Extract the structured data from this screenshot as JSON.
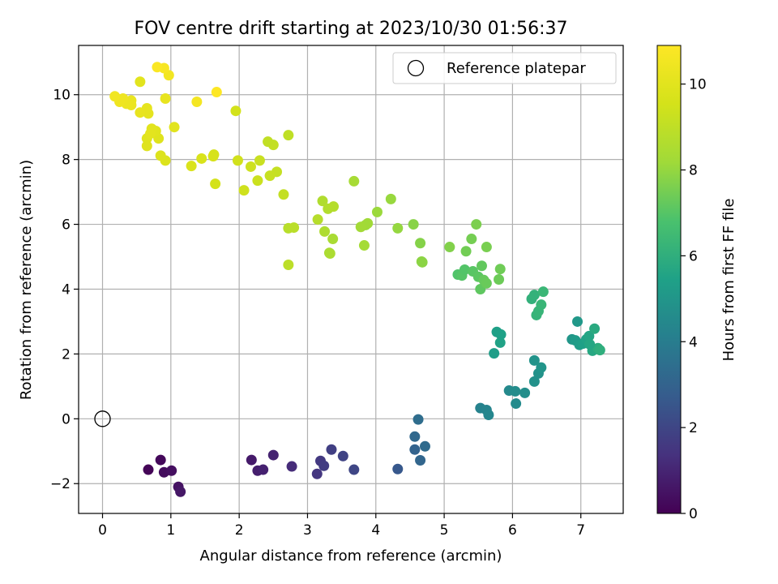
{
  "chart_data": {
    "type": "scatter",
    "title": "FOV centre drift starting at 2023/10/30 01:56:37",
    "xlabel": "Angular distance from reference (arcmin)",
    "ylabel": "Rotation from reference (arcmin)",
    "xlim": [
      -0.35,
      7.62
    ],
    "ylim": [
      -2.92,
      11.52
    ],
    "xticks": [
      0,
      1,
      2,
      3,
      4,
      5,
      6,
      7
    ],
    "xtick_labels": [
      "0",
      "1",
      "2",
      "3",
      "4",
      "5",
      "6",
      "7"
    ],
    "yticks": [
      -2,
      0,
      2,
      4,
      6,
      8,
      10
    ],
    "ytick_labels": [
      "−2",
      "0",
      "2",
      "4",
      "6",
      "8",
      "10"
    ],
    "grid": true,
    "legend": {
      "position": "top-right",
      "entries": [
        {
          "label": "Reference platepar",
          "marker": "open-circle"
        }
      ]
    },
    "reference_point": {
      "x": 0,
      "y": 0,
      "label": "Reference platepar"
    },
    "colorbar": {
      "label": "Hours from first FF file",
      "colormap": "viridis",
      "range": [
        0,
        10.9
      ],
      "ticks": [
        0,
        2,
        4,
        6,
        8,
        10
      ],
      "tick_labels": [
        "0",
        "2",
        "4",
        "6",
        "8",
        "10"
      ]
    },
    "points": [
      {
        "x": 0.67,
        "y": -1.57,
        "c": 0.1
      },
      {
        "x": 0.85,
        "y": -1.27,
        "c": 0.2
      },
      {
        "x": 0.9,
        "y": -1.65,
        "c": 0.3
      },
      {
        "x": 1.01,
        "y": -1.6,
        "c": 0.4
      },
      {
        "x": 1.11,
        "y": -2.1,
        "c": 0.5
      },
      {
        "x": 1.14,
        "y": -2.25,
        "c": 0.6
      },
      {
        "x": 2.18,
        "y": -1.27,
        "c": 0.7
      },
      {
        "x": 2.27,
        "y": -1.6,
        "c": 0.8
      },
      {
        "x": 2.35,
        "y": -1.57,
        "c": 0.9
      },
      {
        "x": 2.5,
        "y": -1.12,
        "c": 0.95
      },
      {
        "x": 2.77,
        "y": -1.47,
        "c": 1.2
      },
      {
        "x": 3.14,
        "y": -1.7,
        "c": 1.5
      },
      {
        "x": 3.19,
        "y": -1.3,
        "c": 1.6
      },
      {
        "x": 3.24,
        "y": -1.45,
        "c": 1.7
      },
      {
        "x": 3.35,
        "y": -0.95,
        "c": 1.8
      },
      {
        "x": 3.52,
        "y": -1.15,
        "c": 1.9
      },
      {
        "x": 3.68,
        "y": -1.57,
        "c": 2.0
      },
      {
        "x": 4.32,
        "y": -1.55,
        "c": 2.6
      },
      {
        "x": 4.57,
        "y": -0.55,
        "c": 3.2
      },
      {
        "x": 4.57,
        "y": -0.95,
        "c": 3.0
      },
      {
        "x": 4.62,
        "y": -0.02,
        "c": 3.4
      },
      {
        "x": 4.65,
        "y": -1.28,
        "c": 3.1
      },
      {
        "x": 4.72,
        "y": -0.85,
        "c": 3.3
      },
      {
        "x": 5.53,
        "y": 0.33,
        "c": 4.2
      },
      {
        "x": 5.62,
        "y": 0.27,
        "c": 4.3
      },
      {
        "x": 5.65,
        "y": 0.12,
        "c": 4.35
      },
      {
        "x": 5.95,
        "y": 0.87,
        "c": 4.5
      },
      {
        "x": 6.04,
        "y": 0.85,
        "c": 4.6
      },
      {
        "x": 6.05,
        "y": 0.47,
        "c": 4.55
      },
      {
        "x": 6.18,
        "y": 0.8,
        "c": 4.7
      },
      {
        "x": 6.32,
        "y": 1.15,
        "c": 4.8
      },
      {
        "x": 6.32,
        "y": 1.8,
        "c": 4.9
      },
      {
        "x": 6.38,
        "y": 1.4,
        "c": 4.85
      },
      {
        "x": 6.42,
        "y": 1.58,
        "c": 4.95
      },
      {
        "x": 5.73,
        "y": 2.02,
        "c": 5.3
      },
      {
        "x": 5.77,
        "y": 2.68,
        "c": 5.4
      },
      {
        "x": 5.82,
        "y": 2.35,
        "c": 5.5
      },
      {
        "x": 5.83,
        "y": 2.6,
        "c": 5.45
      },
      {
        "x": 6.87,
        "y": 2.45,
        "c": 5.0
      },
      {
        "x": 6.92,
        "y": 2.42,
        "c": 5.2
      },
      {
        "x": 6.95,
        "y": 3.0,
        "c": 5.1
      },
      {
        "x": 6.98,
        "y": 2.28,
        "c": 5.3
      },
      {
        "x": 7.03,
        "y": 2.32,
        "c": 5.4
      },
      {
        "x": 7.08,
        "y": 2.45,
        "c": 5.5
      },
      {
        "x": 7.12,
        "y": 2.55,
        "c": 5.6
      },
      {
        "x": 7.17,
        "y": 2.1,
        "c": 5.7
      },
      {
        "x": 7.2,
        "y": 2.78,
        "c": 5.8
      },
      {
        "x": 7.25,
        "y": 2.18,
        "c": 5.9
      },
      {
        "x": 7.28,
        "y": 2.12,
        "c": 6.0
      },
      {
        "x": 7.13,
        "y": 2.3,
        "c": 5.65
      },
      {
        "x": 6.28,
        "y": 3.7,
        "c": 6.1
      },
      {
        "x": 6.32,
        "y": 3.82,
        "c": 6.15
      },
      {
        "x": 6.35,
        "y": 3.2,
        "c": 6.2
      },
      {
        "x": 6.38,
        "y": 3.32,
        "c": 6.25
      },
      {
        "x": 6.42,
        "y": 3.52,
        "c": 6.3
      },
      {
        "x": 6.45,
        "y": 3.92,
        "c": 6.35
      },
      {
        "x": 5.2,
        "y": 4.45,
        "c": 6.9
      },
      {
        "x": 5.26,
        "y": 4.42,
        "c": 7.0
      },
      {
        "x": 5.3,
        "y": 4.6,
        "c": 6.95
      },
      {
        "x": 5.42,
        "y": 4.55,
        "c": 7.05
      },
      {
        "x": 5.5,
        "y": 4.38,
        "c": 7.1
      },
      {
        "x": 5.53,
        "y": 4.0,
        "c": 7.15
      },
      {
        "x": 5.55,
        "y": 4.72,
        "c": 7.2
      },
      {
        "x": 5.58,
        "y": 4.28,
        "c": 7.25
      },
      {
        "x": 5.62,
        "y": 4.18,
        "c": 7.3
      },
      {
        "x": 5.8,
        "y": 4.3,
        "c": 7.35
      },
      {
        "x": 5.82,
        "y": 4.62,
        "c": 7.4
      },
      {
        "x": 5.32,
        "y": 5.17,
        "c": 7.45
      },
      {
        "x": 5.4,
        "y": 5.55,
        "c": 7.5
      },
      {
        "x": 5.47,
        "y": 6.0,
        "c": 7.6
      },
      {
        "x": 5.62,
        "y": 5.3,
        "c": 7.55
      },
      {
        "x": 5.08,
        "y": 5.3,
        "c": 7.7
      },
      {
        "x": 4.55,
        "y": 6.0,
        "c": 7.8
      },
      {
        "x": 4.65,
        "y": 5.42,
        "c": 7.75
      },
      {
        "x": 4.67,
        "y": 4.85,
        "c": 7.9
      },
      {
        "x": 4.68,
        "y": 4.83,
        "c": 7.85
      },
      {
        "x": 4.32,
        "y": 5.88,
        "c": 8.0
      },
      {
        "x": 4.22,
        "y": 6.78,
        "c": 8.05
      },
      {
        "x": 4.02,
        "y": 6.38,
        "c": 8.1
      },
      {
        "x": 3.85,
        "y": 5.98,
        "c": 8.15
      },
      {
        "x": 3.88,
        "y": 6.03,
        "c": 8.2
      },
      {
        "x": 3.78,
        "y": 5.92,
        "c": 8.25
      },
      {
        "x": 3.83,
        "y": 5.35,
        "c": 8.3
      },
      {
        "x": 3.68,
        "y": 7.33,
        "c": 8.35
      },
      {
        "x": 3.37,
        "y": 5.55,
        "c": 8.4
      },
      {
        "x": 3.32,
        "y": 5.12,
        "c": 8.45
      },
      {
        "x": 3.33,
        "y": 5.1,
        "c": 8.5
      },
      {
        "x": 3.25,
        "y": 5.78,
        "c": 8.55
      },
      {
        "x": 3.22,
        "y": 6.72,
        "c": 8.6
      },
      {
        "x": 3.3,
        "y": 6.48,
        "c": 8.65
      },
      {
        "x": 3.38,
        "y": 6.55,
        "c": 8.7
      },
      {
        "x": 3.15,
        "y": 6.15,
        "c": 8.75
      },
      {
        "x": 2.72,
        "y": 5.88,
        "c": 8.8
      },
      {
        "x": 2.8,
        "y": 5.9,
        "c": 8.85
      },
      {
        "x": 2.72,
        "y": 4.75,
        "c": 8.9
      },
      {
        "x": 2.72,
        "y": 8.75,
        "c": 9.0
      },
      {
        "x": 2.65,
        "y": 6.92,
        "c": 9.1
      },
      {
        "x": 2.55,
        "y": 7.62,
        "c": 9.15
      },
      {
        "x": 2.45,
        "y": 7.5,
        "c": 9.2
      },
      {
        "x": 2.5,
        "y": 8.45,
        "c": 9.1
      },
      {
        "x": 2.42,
        "y": 8.55,
        "c": 9.05
      },
      {
        "x": 2.3,
        "y": 7.97,
        "c": 9.25
      },
      {
        "x": 2.27,
        "y": 7.35,
        "c": 9.3
      },
      {
        "x": 2.17,
        "y": 7.78,
        "c": 9.35
      },
      {
        "x": 2.07,
        "y": 7.05,
        "c": 9.4
      },
      {
        "x": 1.98,
        "y": 7.97,
        "c": 9.45
      },
      {
        "x": 1.95,
        "y": 9.5,
        "c": 9.5
      },
      {
        "x": 1.65,
        "y": 7.25,
        "c": 9.55
      },
      {
        "x": 1.63,
        "y": 8.15,
        "c": 9.6
      },
      {
        "x": 1.62,
        "y": 8.1,
        "c": 9.65
      },
      {
        "x": 1.45,
        "y": 8.03,
        "c": 9.7
      },
      {
        "x": 1.3,
        "y": 7.8,
        "c": 9.75
      },
      {
        "x": 0.92,
        "y": 7.97,
        "c": 9.8
      },
      {
        "x": 0.85,
        "y": 8.12,
        "c": 9.85
      },
      {
        "x": 0.82,
        "y": 8.65,
        "c": 9.9
      },
      {
        "x": 0.78,
        "y": 8.88,
        "c": 9.95
      },
      {
        "x": 0.72,
        "y": 8.95,
        "c": 10.0
      },
      {
        "x": 0.65,
        "y": 8.65,
        "c": 9.95
      },
      {
        "x": 0.65,
        "y": 8.42,
        "c": 9.9
      },
      {
        "x": 0.7,
        "y": 8.8,
        "c": 10.05
      },
      {
        "x": 1.05,
        "y": 9.0,
        "c": 10.0
      },
      {
        "x": 0.67,
        "y": 9.42,
        "c": 10.1
      },
      {
        "x": 0.65,
        "y": 9.58,
        "c": 10.15
      },
      {
        "x": 0.55,
        "y": 9.45,
        "c": 10.2
      },
      {
        "x": 0.55,
        "y": 10.4,
        "c": 10.0
      },
      {
        "x": 0.42,
        "y": 9.82,
        "c": 10.25
      },
      {
        "x": 0.42,
        "y": 9.68,
        "c": 10.3
      },
      {
        "x": 0.35,
        "y": 9.72,
        "c": 10.35
      },
      {
        "x": 0.3,
        "y": 9.88,
        "c": 10.4
      },
      {
        "x": 0.25,
        "y": 9.78,
        "c": 10.45
      },
      {
        "x": 0.18,
        "y": 9.95,
        "c": 10.5
      },
      {
        "x": 0.92,
        "y": 9.88,
        "c": 10.2
      },
      {
        "x": 0.97,
        "y": 10.6,
        "c": 10.55
      },
      {
        "x": 0.9,
        "y": 10.82,
        "c": 10.7
      },
      {
        "x": 0.8,
        "y": 10.85,
        "c": 10.8
      },
      {
        "x": 1.38,
        "y": 9.78,
        "c": 10.6
      },
      {
        "x": 1.67,
        "y": 10.08,
        "c": 10.9
      }
    ]
  }
}
